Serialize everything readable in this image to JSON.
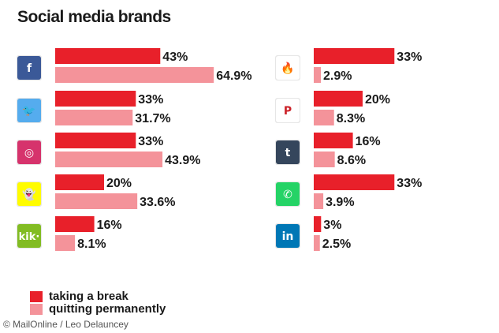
{
  "chart_data": {
    "type": "bar",
    "title": "Social media brands",
    "categories": [
      "Facebook",
      "Twitter",
      "Instagram",
      "Snapchat",
      "Kik",
      "Tinder",
      "Pinterest",
      "Tumblr",
      "WhatsApp",
      "LinkedIn"
    ],
    "series": [
      {
        "name": "taking a break",
        "values": [
          43,
          33,
          33,
          20,
          16,
          33,
          20,
          16,
          33,
          3
        ]
      },
      {
        "name": "quitting permanently",
        "values": [
          64.9,
          31.7,
          43.9,
          33.6,
          8.1,
          2.9,
          8.3,
          8.6,
          3.9,
          2.5
        ]
      }
    ],
    "value_labels": [
      [
        "43%",
        "33%",
        "33%",
        "20%",
        "16%",
        "33%",
        "20%",
        "16%",
        "33%",
        "3%"
      ],
      [
        "64.9%",
        "31.7%",
        "43.9%",
        "33.6%",
        "8.1%",
        "2.9%",
        "8.3%",
        "8.6%",
        "3.9%",
        "2.5%"
      ]
    ],
    "colors": {
      "break": "#e8202a",
      "quit": "#f4939a"
    },
    "layout": "two panels of horizontal grouped bars, brand logo icons left of each pair, legend bottom-left",
    "brand_icons": [
      {
        "name": "facebook-icon",
        "glyph": "f",
        "color": "#3b5998"
      },
      {
        "name": "twitter-icon",
        "glyph": "🐦",
        "color": "#55acee"
      },
      {
        "name": "instagram-icon",
        "glyph": "◎",
        "color": "#d6336c"
      },
      {
        "name": "snapchat-icon",
        "glyph": "👻",
        "color": "#fffc00"
      },
      {
        "name": "kik-icon",
        "glyph": "kik·",
        "color": "#82bc23"
      },
      {
        "name": "tinder-icon",
        "glyph": "🔥",
        "color": "#ffffff"
      },
      {
        "name": "pinterest-icon",
        "glyph": "P",
        "color": "#ffffff"
      },
      {
        "name": "tumblr-icon",
        "glyph": "t",
        "color": "#35465c"
      },
      {
        "name": "whatsapp-icon",
        "glyph": "✆",
        "color": "#25d366"
      },
      {
        "name": "linkedin-icon",
        "glyph": "in",
        "color": "#0077b5"
      }
    ]
  },
  "legend": {
    "break_label": "taking a break",
    "quit_label": "quitting permanently"
  },
  "credit": "© MailOnline / Leo Delauncey"
}
